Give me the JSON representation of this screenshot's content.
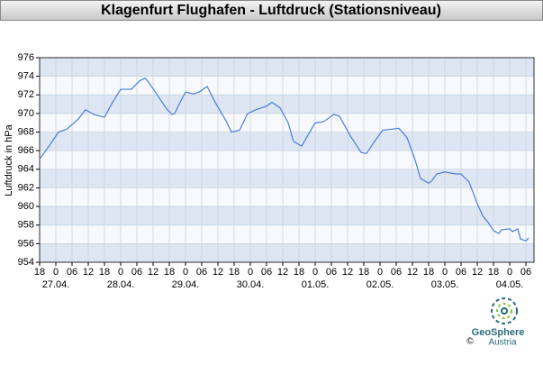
{
  "chart_data": {
    "type": "line",
    "title": "Klagenfurt Flughafen - Luftdruck (Stationsniveau)",
    "y_label": "Luftdruck in hPa",
    "x": [
      0,
      4,
      7,
      10,
      14,
      17,
      20,
      24,
      27,
      30,
      34,
      37,
      39,
      40,
      44,
      47,
      49,
      50,
      52,
      54,
      57,
      59,
      62,
      65,
      69,
      71,
      74,
      77,
      80,
      84,
      86,
      89,
      92,
      94,
      97,
      99,
      102,
      105,
      109,
      111,
      115,
      119,
      121,
      124,
      127,
      130,
      133,
      136,
      139,
      141,
      144,
      145,
      147,
      150,
      154,
      156,
      159,
      162,
      164,
      166,
      168,
      170,
      171,
      174,
      175,
      177,
      178,
      180,
      181
    ],
    "values": [
      965.1,
      966.7,
      968.0,
      968.3,
      969.3,
      970.4,
      969.9,
      969.6,
      971.2,
      972.6,
      972.6,
      973.5,
      973.8,
      973.5,
      971.8,
      970.5,
      969.9,
      970.0,
      971.2,
      972.3,
      972.1,
      972.3,
      972.9,
      971.2,
      969.2,
      968.0,
      968.2,
      970.0,
      970.4,
      970.8,
      971.2,
      970.6,
      969.0,
      967.0,
      966.5,
      967.5,
      969.0,
      969.1,
      969.9,
      969.7,
      967.6,
      965.8,
      965.7,
      967.0,
      968.2,
      968.3,
      968.4,
      967.4,
      965.0,
      963.0,
      962.5,
      962.7,
      963.5,
      963.7,
      963.5,
      963.5,
      962.6,
      960.3,
      959.0,
      958.3,
      957.4,
      957.1,
      957.5,
      957.6,
      957.3,
      957.6,
      956.5,
      956.3,
      956.6
    ],
    "color": "#4a7fd6",
    "xlim": [
      0,
      183
    ],
    "xticks": [
      {
        "value": 0,
        "label": "18"
      },
      {
        "value": 6,
        "label": "0"
      },
      {
        "value": 12,
        "label": "06"
      },
      {
        "value": 18,
        "label": "12"
      },
      {
        "value": 24,
        "label": "18"
      },
      {
        "value": 30,
        "label": "0"
      },
      {
        "value": 36,
        "label": "06"
      },
      {
        "value": 42,
        "label": "12"
      },
      {
        "value": 48,
        "label": "18"
      },
      {
        "value": 54,
        "label": "0"
      },
      {
        "value": 60,
        "label": "06"
      },
      {
        "value": 66,
        "label": "12"
      },
      {
        "value": 72,
        "label": "18"
      },
      {
        "value": 78,
        "label": "0"
      },
      {
        "value": 84,
        "label": "06"
      },
      {
        "value": 90,
        "label": "12"
      },
      {
        "value": 96,
        "label": "18"
      },
      {
        "value": 102,
        "label": "0"
      },
      {
        "value": 108,
        "label": "06"
      },
      {
        "value": 114,
        "label": "12"
      },
      {
        "value": 120,
        "label": "18"
      },
      {
        "value": 126,
        "label": "0"
      },
      {
        "value": 132,
        "label": "06"
      },
      {
        "value": 138,
        "label": "12"
      },
      {
        "value": 144,
        "label": "18"
      },
      {
        "value": 150,
        "label": "0"
      },
      {
        "value": 156,
        "label": "06"
      },
      {
        "value": 162,
        "label": "12"
      },
      {
        "value": 168,
        "label": "18"
      },
      {
        "value": 174,
        "label": "0"
      },
      {
        "value": 180,
        "label": "06"
      }
    ],
    "date_labels": [
      {
        "value": 6,
        "label": "27.04."
      },
      {
        "value": 30,
        "label": "28.04."
      },
      {
        "value": 54,
        "label": "29.04."
      },
      {
        "value": 78,
        "label": "30.04."
      },
      {
        "value": 102,
        "label": "01.05."
      },
      {
        "value": 126,
        "label": "02.05."
      },
      {
        "value": 150,
        "label": "03.05."
      },
      {
        "value": 174,
        "label": "04.05."
      }
    ],
    "ylim": [
      954,
      976
    ],
    "yticks": [
      954,
      956,
      958,
      960,
      962,
      964,
      966,
      968,
      970,
      972,
      974,
      976
    ],
    "grid": true
  },
  "footer": {
    "logo_name": "GeoSphere",
    "logo_sub": "Austria",
    "copyright": "©"
  }
}
